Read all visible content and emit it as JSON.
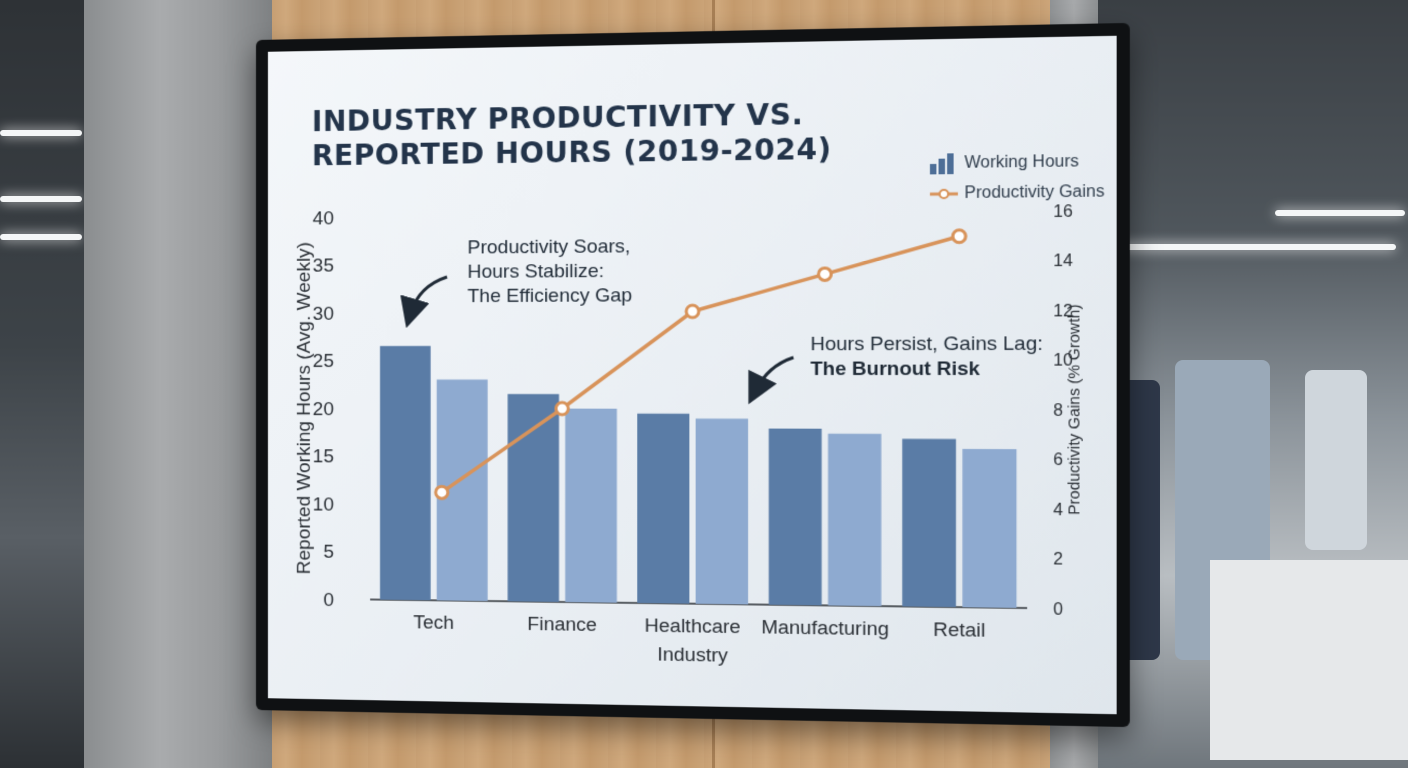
{
  "colors": {
    "bar_dark": "#5a7ca6",
    "bar_light": "#8eaad0",
    "line": "#d8935a",
    "axis_text": "#2a2f35"
  },
  "legend": {
    "hours_icon": "bar-chart-icon",
    "hours_label": "Working Hours",
    "gains_icon": "line-marker-icon",
    "gains_label": "Productivity Gains"
  },
  "annotations": {
    "gap_line1": "Productivity Soars,",
    "gap_line2": "Hours Stabilize:",
    "gap_line3": "The Efficiency Gap",
    "burnout_line1": "Hours Persist, Gains Lag:",
    "burnout_line2": "The Burnout Risk"
  },
  "chart_data": {
    "type": "bar",
    "title": "INDUSTRY PRODUCTIVITY VS. REPORTED HOURS (2019-2024)",
    "title_line1": "INDUSTRY PRODUCTIVITY VS.",
    "title_line2": "REPORTED HOURS (2019-2024)",
    "categories": [
      "Tech",
      "Finance",
      "Healthcare",
      "Manufacturing",
      "Retail"
    ],
    "xlabel": "Industry",
    "ylabel": "Reported Working Hours (Avg. Weekly)",
    "y2label": "Productivity Gains (% Growth)",
    "ylim": [
      0,
      40
    ],
    "y_ticks": [
      0,
      5,
      10,
      15,
      20,
      25,
      30,
      35,
      40
    ],
    "y2lim": [
      0,
      16
    ],
    "y2_ticks": [
      0,
      2,
      4,
      6,
      8,
      10,
      12,
      14,
      16
    ],
    "series": [
      {
        "name": "Working Hours",
        "type": "bar",
        "axis": "left",
        "values": [
          26.5,
          21.5,
          19.5,
          18,
          17
        ]
      },
      {
        "name": "Working Hours",
        "type": "bar",
        "axis": "left",
        "values": [
          23,
          20,
          19,
          17.5,
          16
        ]
      },
      {
        "name": "Productivity Gains",
        "type": "line",
        "axis": "right",
        "values": [
          4.5,
          8,
          12,
          13.5,
          15
        ]
      }
    ]
  }
}
